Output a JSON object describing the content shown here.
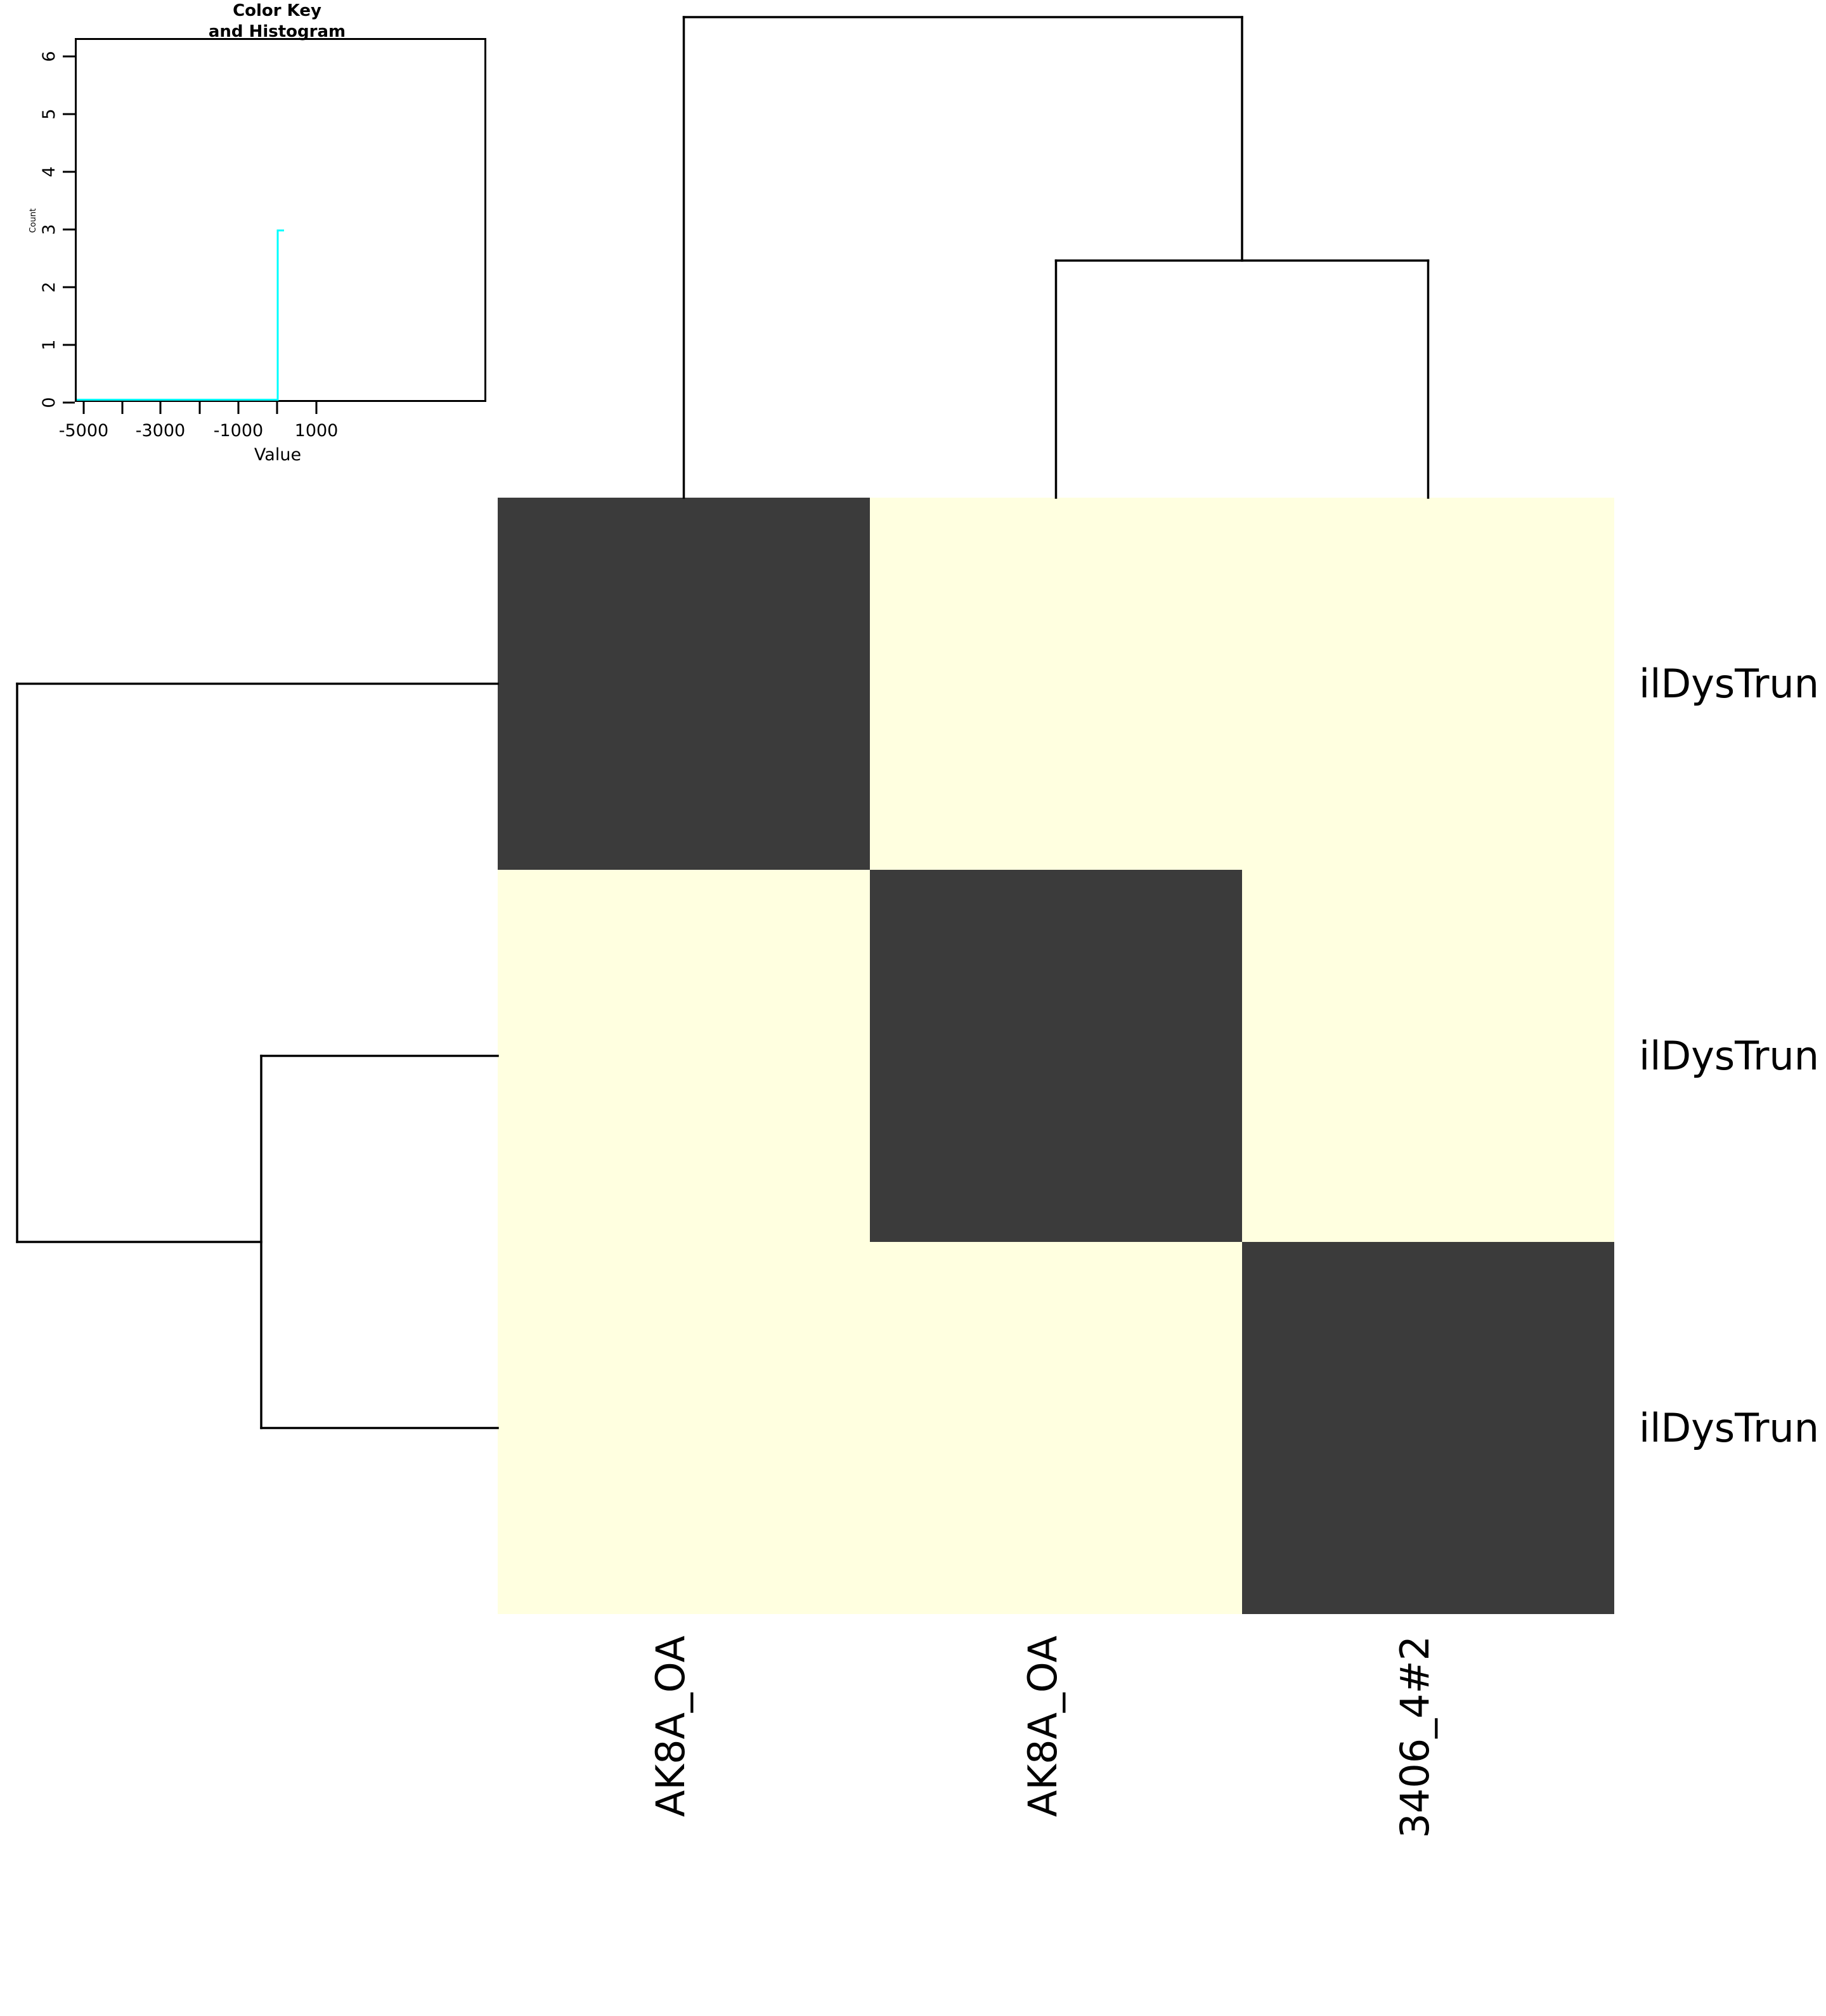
{
  "chart_data": {
    "type": "heatmap",
    "heatmap": {
      "row_labels": [
        "ilDysTrun",
        "ilDysTrun",
        "ilDysTrun"
      ],
      "col_labels": [
        "AK8A_OA",
        "AK8A_OA",
        "3406_4#2"
      ],
      "matrix_pattern": [
        [
          1,
          0,
          0
        ],
        [
          0,
          1,
          0
        ],
        [
          0,
          0,
          1
        ]
      ],
      "diagonal_color": "#3b3b3b",
      "off_diagonal_color": "#ffffe0"
    },
    "color_key": {
      "title_line1": "Color Key",
      "title_line2": "and Histogram",
      "xlabel": "Value",
      "ylabel": "Count",
      "x_tick_labels": [
        "-5000",
        "-3000",
        "-1000",
        "1000"
      ],
      "x_tick_values_all": [
        -5000,
        -4000,
        -3000,
        -2000,
        -1000,
        0,
        1000
      ],
      "y_tick_labels": [
        "0",
        "1",
        "2",
        "3",
        "4",
        "5",
        "6"
      ],
      "y_axis_range": [
        0,
        6
      ],
      "histogram": {
        "spike_value": 0,
        "spike_count": 3,
        "trace_color": "#00ffff"
      }
    },
    "dendrograms": {
      "column_join_order": "columns 2 and 3 join first, then join column 1",
      "row_join_order": "rows 2 and 3 join first, then join row 1"
    }
  }
}
